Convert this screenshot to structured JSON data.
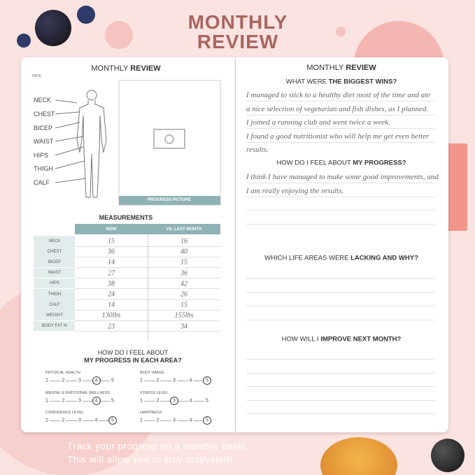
{
  "header": {
    "title_lines": [
      "MONTHLY",
      "REVIEW"
    ]
  },
  "left_page": {
    "title": [
      "MONTHLY",
      "REVIEW"
    ],
    "date_label": "DATE",
    "body_labels": [
      "NECK",
      "CHEST",
      "BICEP",
      "WAIST",
      "HIPS",
      "THIGH",
      "CALF"
    ],
    "photo_caption": "PROGRESS PICTURE",
    "measurements": {
      "title": "MEASUREMENTS",
      "headers": [
        "NOW",
        "VS. LAST MONTH"
      ],
      "rows": [
        [
          "NECK",
          15,
          16
        ],
        [
          "CHEST",
          36,
          40
        ],
        [
          "BICEP",
          14,
          15
        ],
        [
          "WAIST",
          27,
          36
        ],
        [
          "HIPS",
          38,
          42
        ],
        [
          "THIGH",
          24,
          26
        ],
        [
          "CALF",
          14,
          15
        ],
        [
          "WEIGHT",
          "130lbs",
          "155lbs"
        ],
        [
          "BODY FAT %",
          23,
          34
        ]
      ]
    },
    "feel": {
      "question": [
        "HOW DO I FEEL ABOUT",
        "MY PROGRESS IN EACH AREA?"
      ],
      "areas": [
        {
          "label": "PHYSICAL HEALTH",
          "scale": [
            1,
            2,
            3,
            4,
            5
          ],
          "selected": 4
        },
        {
          "label": "BODY IMAGE",
          "scale": [
            1,
            2,
            3,
            4,
            5
          ],
          "selected": 5
        },
        {
          "label": "MENTAL & EMOTIONAL WELLNESS",
          "scale": [
            1,
            2,
            3,
            4,
            5
          ],
          "selected": 4
        },
        {
          "label": "STRESS LEVEL",
          "scale": [
            1,
            2,
            3,
            4,
            5
          ],
          "selected": 3
        },
        {
          "label": "CONFIDENCE LEVEL",
          "scale": [
            1,
            2,
            3,
            4,
            5
          ],
          "selected": 5
        },
        {
          "label": "HAPPINESS",
          "scale": [
            1,
            2,
            3,
            4,
            5
          ],
          "selected": 5
        }
      ]
    }
  },
  "right_page": {
    "title": [
      "MONTHLY",
      "REVIEW"
    ],
    "sections": [
      {
        "question": [
          "WHAT WERE",
          "THE BIGGEST WINS?"
        ],
        "answers": [
          "I managed to stick to a healthy diet most of the time and ate",
          "a nice selection of vegetarian and fish dishes, as I planned.",
          "I joined a running club and went twice a week.",
          "I found a good nutritionist who will help me get even better",
          "results."
        ]
      },
      {
        "question": [
          "HOW DO I FEEL ABOUT",
          "MY PROGRESS?"
        ],
        "answers": [
          "I think I have managed to make some good improvements, and",
          "I am really enjoying the results."
        ]
      },
      {
        "question": [
          "WHICH LIFE AREAS WERE",
          "LACKING AND WHY?"
        ],
        "answers": []
      },
      {
        "question": [
          "HOW WILL I",
          "IMPROVE NEXT MONTH?"
        ],
        "answers": []
      }
    ]
  },
  "footer": {
    "lines": [
      "Track your progress on a monthly basis.",
      "This will allow you to stay motivated!"
    ]
  }
}
